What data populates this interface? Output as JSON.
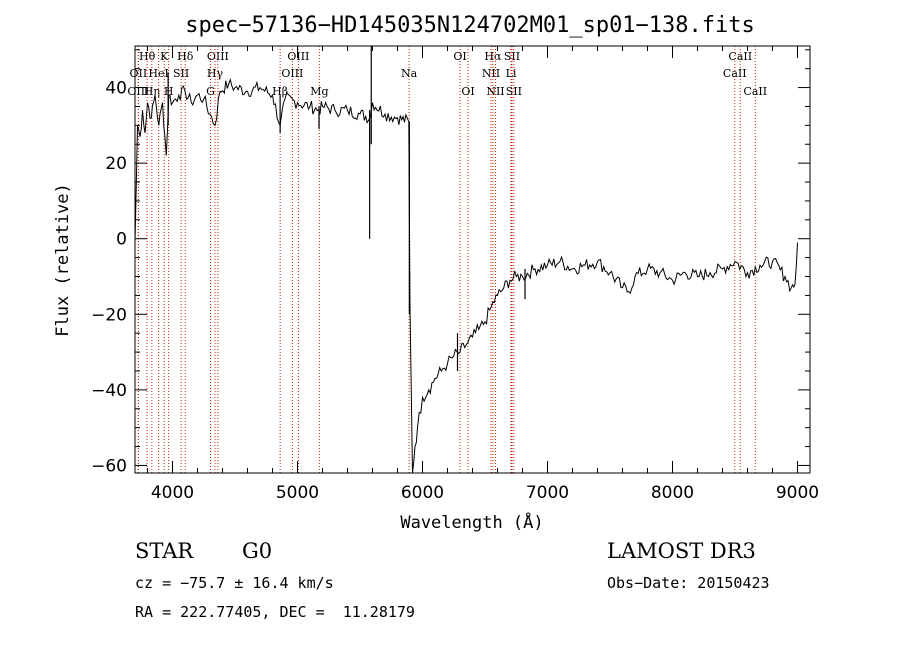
{
  "chart_data": {
    "type": "line",
    "title": "spec−57136−HD145035N124702M01_sp01−138.fits",
    "xlabel": "Wavelength (Å)",
    "ylabel": "Flux (relative)",
    "xlim": [
      3700,
      9100
    ],
    "ylim": [
      -62,
      51
    ],
    "x_ticks": [
      4000,
      5000,
      6000,
      7000,
      8000,
      9000
    ],
    "y_ticks": [
      -60,
      -40,
      -20,
      0,
      20,
      40
    ],
    "y_tick_labels": [
      "−60",
      "−40",
      "−20",
      "0",
      "20",
      "40"
    ],
    "series": [
      {
        "x": [
          3700,
          3720,
          3740,
          3760,
          3780,
          3800,
          3830,
          3860,
          3890,
          3920,
          3950,
          3970,
          4000,
          4050,
          4100,
          4150,
          4200,
          4250,
          4300,
          4340,
          4380,
          4450,
          4500,
          4600,
          4700,
          4800,
          4861,
          4900,
          5000,
          5100,
          5170,
          5200,
          5300,
          5400,
          5500,
          5580,
          5600,
          5700,
          5800,
          5890,
          5900,
          5920,
          5940,
          5960,
          6000,
          6050,
          6100,
          6150,
          6200,
          6250,
          6300,
          6350,
          6400,
          6450,
          6500,
          6550,
          6600,
          6650,
          6700,
          6750,
          6800,
          6900,
          7000,
          7100,
          7200,
          7300,
          7400,
          7500,
          7600,
          7650,
          7700,
          7800,
          7900,
          8000,
          8100,
          8200,
          8300,
          8400,
          8500,
          8600,
          8700,
          8800,
          8900,
          8950,
          8980,
          9000
        ],
        "y": [
          -1,
          30,
          27,
          34,
          28,
          36,
          32,
          38,
          30,
          36,
          22,
          38,
          36,
          38,
          39,
          36,
          38,
          37,
          33,
          30,
          39,
          41,
          40,
          39,
          40,
          38,
          30,
          37,
          36,
          35,
          34,
          35,
          34,
          34,
          33,
          32,
          36,
          33,
          32,
          31,
          -18,
          -62,
          -55,
          -50,
          -42,
          -40,
          -37,
          -35,
          -33,
          -31,
          -30,
          -28,
          -26,
          -24,
          -22,
          -18,
          -15,
          -13,
          -11,
          -10,
          -10,
          -8,
          -7,
          -6,
          -8,
          -7,
          -6,
          -9,
          -13,
          -14,
          -10,
          -8,
          -9,
          -11,
          -9,
          -10,
          -9,
          -8,
          -6,
          -9,
          -7,
          -6,
          -10,
          -13,
          -12,
          -1
        ]
      }
    ],
    "spikes": [
      {
        "x": 3965,
        "y": [
          30,
          44
        ]
      },
      {
        "x": 4861,
        "y": [
          28,
          38
        ]
      },
      {
        "x": 5172,
        "y": [
          29,
          35
        ]
      },
      {
        "x": 5577,
        "y": [
          0,
          34
        ]
      },
      {
        "x": 5590,
        "y": [
          25,
          51
        ]
      },
      {
        "x": 5895,
        "y": [
          -20,
          31
        ]
      },
      {
        "x": 6280,
        "y": [
          -35,
          -25
        ]
      },
      {
        "x": 6820,
        "y": [
          -16,
          -8
        ]
      }
    ],
    "spectral_lines": [
      {
        "label": "Hθ",
        "x": 3797,
        "row": 0
      },
      {
        "label": "OII",
        "x": 3727,
        "row": 1
      },
      {
        "label": "OIII",
        "x": 3727,
        "row": 2
      },
      {
        "label": "Hη",
        "x": 3835,
        "row": 2
      },
      {
        "label": "K",
        "x": 3934,
        "row": 0
      },
      {
        "label": "HeI",
        "x": 3889,
        "row": 1
      },
      {
        "label": "H",
        "x": 3969,
        "row": 2
      },
      {
        "label": "Hδ",
        "x": 4102,
        "row": 0
      },
      {
        "label": "SII",
        "x": 4069,
        "row": 1
      },
      {
        "label": "OIII",
        "x": 4363,
        "row": 0
      },
      {
        "label": "Hγ",
        "x": 4340,
        "row": 1
      },
      {
        "label": "G",
        "x": 4304,
        "row": 2
      },
      {
        "label": "OIII",
        "x": 5007,
        "row": 0
      },
      {
        "label": "OIII",
        "x": 4959,
        "row": 1
      },
      {
        "label": "Hβ",
        "x": 4861,
        "row": 2
      },
      {
        "label": "Mg",
        "x": 5175,
        "row": 2
      },
      {
        "label": "Na",
        "x": 5893,
        "row": 1
      },
      {
        "label": "OI",
        "x": 6300,
        "row": 0
      },
      {
        "label": "OI",
        "x": 6364,
        "row": 2
      },
      {
        "label": "Hα",
        "x": 6563,
        "row": 0
      },
      {
        "label": "SII",
        "x": 6716,
        "row": 0
      },
      {
        "label": "NII",
        "x": 6548,
        "row": 1
      },
      {
        "label": "Li",
        "x": 6708,
        "row": 1
      },
      {
        "label": "NII",
        "x": 6584,
        "row": 2
      },
      {
        "label": "SII",
        "x": 6731,
        "row": 2
      },
      {
        "label": "CaII",
        "x": 8542,
        "row": 0
      },
      {
        "label": "CaII",
        "x": 8498,
        "row": 1
      },
      {
        "label": "CaII",
        "x": 8662,
        "row": 2
      }
    ]
  },
  "info": {
    "obj_class": "STAR",
    "subclass": "G0",
    "survey": "LAMOST DR3",
    "cz": "cz = −75.7 ± 16.4 km/s",
    "obs_date": "Obs−Date: 20150423",
    "radec": "RA = 222.77405, DEC =  11.28179"
  },
  "colors": {
    "line": "#000000",
    "marker": "#cc2200",
    "frame": "#000000"
  }
}
